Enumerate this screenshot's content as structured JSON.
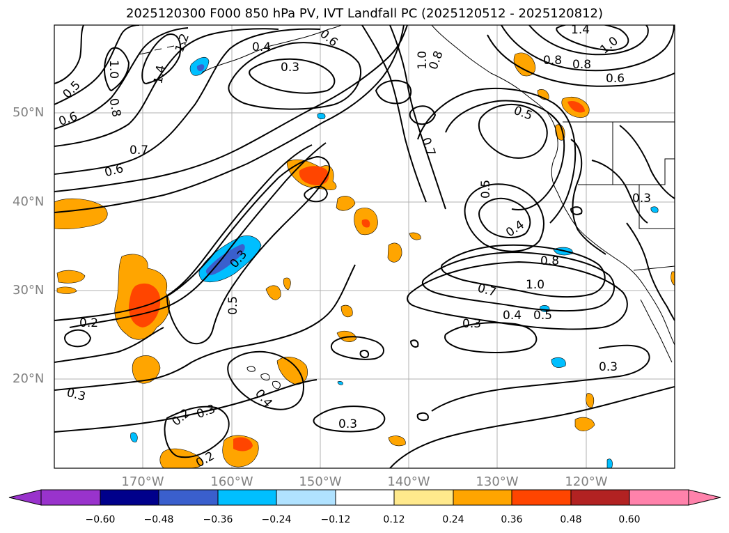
{
  "title": "2025120300 F000 850 hPa PV, IVT Landfall PC (2025120512 - 2025120812)",
  "latitude_labels": [
    "50°N",
    "40°N",
    "30°N",
    "20°N"
  ],
  "longitude_labels": [
    "170°W",
    "160°W",
    "150°W",
    "140°W",
    "130°W",
    "120°W"
  ],
  "colorbar": {
    "ticks": [
      "−0.60",
      "−0.48",
      "−0.36",
      "−0.24",
      "−0.12",
      "0.12",
      "0.24",
      "0.36",
      "0.48",
      "0.60"
    ],
    "colors": [
      "#9933cc",
      "#00008b",
      "#3a5fcd",
      "#00bfff",
      "#b0e2ff",
      "#ffffff",
      "#ffe98c",
      "#ffa500",
      "#ff4500",
      "#b22222",
      "#ff82ab"
    ]
  },
  "contour_labels": [
    "1.4",
    "1.0",
    "0.8",
    "0.6",
    "0.7",
    "0.4",
    "0.3",
    "1.0",
    "0.8",
    "0.7",
    "0.5",
    "0.4",
    "0.3",
    "0.5",
    "0.3",
    "0.2",
    "0.3",
    "0.4",
    "0.2",
    "0.3",
    "0.3",
    "0.2",
    "0.8",
    "1.0",
    "0.7",
    "0.4",
    "0.5",
    "0.3",
    "0.5",
    "0.3",
    "0.6",
    "0.5",
    "0.6",
    "0.8",
    "1.0",
    "1.2",
    "1.4",
    "0.6",
    "0.8"
  ],
  "fill_colors": {
    "pos_low": "#ffa500",
    "pos_mid": "#ff4500",
    "pos_high": "#b22222",
    "neg_low": "#00bfff",
    "neg_mid": "#3a5fcd"
  }
}
